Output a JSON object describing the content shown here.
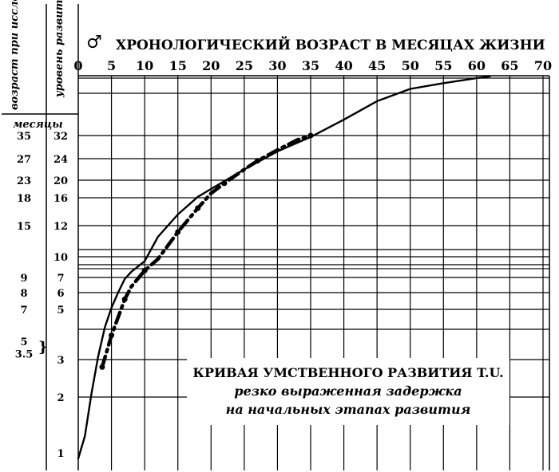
{
  "chart_data": {
    "type": "line",
    "title": "ХРОНОЛОГИЧЕСКИЙ ВОЗРАСТ В МЕСЯЦАХ ЖИЗНИ",
    "xlabel": "ХРОНОЛОГИЧЕСКИЙ ВОЗРАСТ В МЕСЯЦАХ ЖИЗНИ",
    "sex_symbol": "♂",
    "xlim": [
      0,
      70
    ],
    "x_ticks": [
      0,
      5,
      10,
      15,
      20,
      25,
      30,
      35,
      40,
      45,
      50,
      55,
      60,
      65,
      70
    ],
    "left_headers": {
      "col1": "возраст при исследовании",
      "col2": "уровень развития",
      "months": "месяцы"
    },
    "left_col1_ticks": [
      {
        "label": "35",
        "level": 32
      },
      {
        "label": "27",
        "level": 24
      },
      {
        "label": "23",
        "level": 20
      },
      {
        "label": "18",
        "level": 16
      },
      {
        "label": "15",
        "level": 12
      },
      {
        "label": "9",
        "level": 7
      },
      {
        "label": "8",
        "level": 6
      },
      {
        "label": "7",
        "level": 5
      },
      {
        "label": "5",
        "level": 3.6
      },
      {
        "label": "3.5",
        "level": 3.2
      }
    ],
    "left_col2_ticks": [
      {
        "label": "32",
        "level": 32
      },
      {
        "label": "24",
        "level": 24
      },
      {
        "label": "20",
        "level": 20
      },
      {
        "label": "16",
        "level": 16
      },
      {
        "label": "12",
        "level": 12
      },
      {
        "label": "10",
        "level": 10
      },
      {
        "label": "7",
        "level": 7
      },
      {
        "label": "6",
        "level": 6
      },
      {
        "label": "5",
        "level": 5
      },
      {
        "label": "3",
        "level": 3
      },
      {
        "label": "2",
        "level": 2
      },
      {
        "label": "1",
        "level": 1
      }
    ],
    "horizontal_gridlines": [
      60,
      48,
      32,
      24,
      20,
      16,
      12,
      10.5,
      10,
      9.3,
      8.5,
      7,
      6,
      5,
      4,
      3,
      2
    ],
    "series": [
      {
        "style": "solid",
        "x": [
          0,
          1,
          2,
          3,
          4,
          5,
          6,
          7,
          8,
          10,
          12,
          15,
          18,
          20,
          25,
          30,
          35,
          40,
          45,
          50,
          55,
          60,
          62
        ],
        "y": [
          0.3,
          1.3,
          2.1,
          3.1,
          4.1,
          5.1,
          6.0,
          6.9,
          7.9,
          9.6,
          11.3,
          13.6,
          16.2,
          18.0,
          22.0,
          26.5,
          31.5,
          38.0,
          45.0,
          51.5,
          56.0,
          60.0,
          61.5
        ]
      },
      {
        "style": "dash-dot",
        "x": [
          3.6,
          5,
          6,
          7,
          8,
          10,
          12,
          15,
          18,
          20,
          22,
          25,
          27,
          30,
          33,
          35
        ],
        "y": [
          2.8,
          3.8,
          4.6,
          5.6,
          6.4,
          8.1,
          9.8,
          11.6,
          14.5,
          17.0,
          19.3,
          22.0,
          23.6,
          27.0,
          30.5,
          32.0
        ],
        "markers_x": [
          3.6,
          5,
          7,
          10,
          15,
          18,
          22,
          27,
          35
        ],
        "markers_y": [
          2.8,
          3.8,
          5.6,
          8.1,
          11.6,
          14.5,
          19.3,
          23.6,
          32.0
        ]
      }
    ],
    "annotation": {
      "line1": "КРИВАЯ УМСТВЕННОГО РАЗВИТИЯ T.U.",
      "line2": "резко выраженная задержка",
      "line3": "на начальных этапах развития"
    }
  }
}
